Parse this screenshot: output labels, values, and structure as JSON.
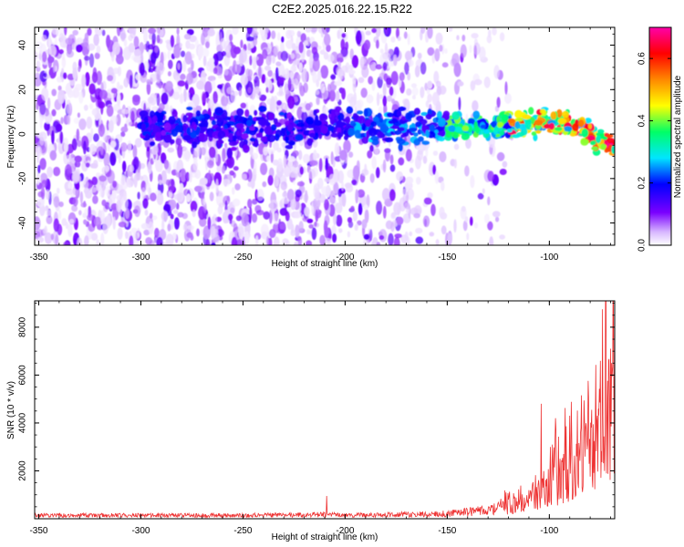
{
  "page": {
    "title": "C2E2.2025.016.22.15.R22"
  },
  "chart_data": [
    {
      "id": "spectrogram",
      "type": "heatmap",
      "xlabel": "Height of straight line (km)",
      "ylabel": "Frequency (Hz)",
      "xlim": [
        -352,
        -68
      ],
      "ylim": [
        -50,
        48
      ],
      "x_ticks": [
        -350,
        -300,
        -250,
        -200,
        -150,
        -100
      ],
      "y_ticks": [
        -40,
        -20,
        0,
        20,
        40
      ],
      "grid": false,
      "colorbar": {
        "label": "Normalized spectral amplitude",
        "range": [
          0.0,
          0.7
        ],
        "ticks": [
          0.0,
          0.2,
          0.4,
          0.6
        ],
        "colormap": [
          "#ffffff",
          "#d8b8ff",
          "#7a00ff",
          "#0000ff",
          "#00e5ff",
          "#00ff66",
          "#ffff00",
          "#ff8800",
          "#ff0000",
          "#ff00aa"
        ]
      },
      "features": {
        "noise_extent_x": [
          -352,
          -122
        ],
        "signal_band_center_hz": [
          {
            "x": -295,
            "y": 3
          },
          {
            "x": -250,
            "y": 2
          },
          {
            "x": -200,
            "y": 4
          },
          {
            "x": -150,
            "y": 3
          },
          {
            "x": -120,
            "y": 4
          },
          {
            "x": -100,
            "y": 5
          },
          {
            "x": -85,
            "y": 3
          },
          {
            "x": -70,
            "y": -5
          }
        ],
        "peak_amplitude": 0.7
      }
    },
    {
      "id": "snr",
      "type": "line",
      "xlabel": "Height of straight line (km)",
      "ylabel": "SNR (10 * v/v)",
      "xlim": [
        -352,
        -68
      ],
      "ylim": [
        0,
        9100
      ],
      "x_ticks": [
        -350,
        -300,
        -250,
        -200,
        -150,
        -100
      ],
      "y_ticks": [
        2000,
        4000,
        6000,
        8000
      ],
      "grid": false,
      "series_color": "#ee3333",
      "envelope": [
        {
          "x": -352,
          "y": 200
        },
        {
          "x": -300,
          "y": 200
        },
        {
          "x": -250,
          "y": 200
        },
        {
          "x": -210,
          "y": 250
        },
        {
          "x": -200,
          "y": 200
        },
        {
          "x": -150,
          "y": 300
        },
        {
          "x": -130,
          "y": 500
        },
        {
          "x": -120,
          "y": 700
        },
        {
          "x": -110,
          "y": 1000
        },
        {
          "x": -100,
          "y": 1800
        },
        {
          "x": -90,
          "y": 2800
        },
        {
          "x": -80,
          "y": 3800
        },
        {
          "x": -75,
          "y": 5000
        },
        {
          "x": -70,
          "y": 6000
        }
      ],
      "peaks": [
        {
          "x": -209,
          "y": 950
        },
        {
          "x": -104,
          "y": 4800
        },
        {
          "x": -97,
          "y": 4200
        },
        {
          "x": -75,
          "y": 6600
        },
        {
          "x": -72.5,
          "y": 9100
        },
        {
          "x": -70,
          "y": 7100
        }
      ]
    }
  ]
}
